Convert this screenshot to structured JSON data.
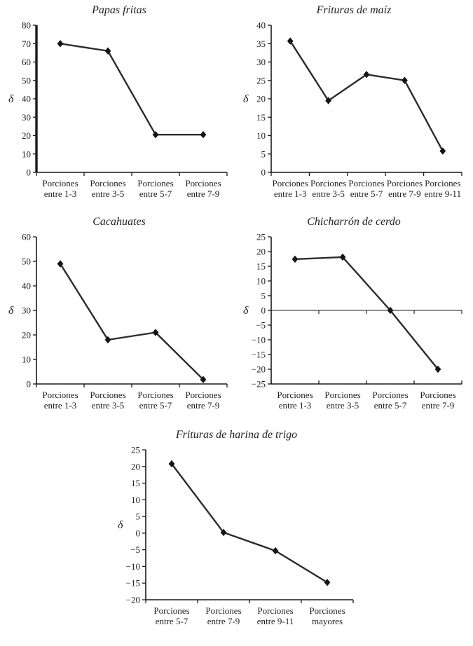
{
  "figure": {
    "description": "Five small-multiple line charts of delta values by portion ranges",
    "ylabel_symbol": "δ"
  },
  "colors": {
    "line": "#2b2b2b",
    "marker": "#151515",
    "axis": "#1a1a1a",
    "text": "#1f1f1f",
    "background": "#ffffff"
  },
  "chart_data": [
    {
      "type": "line",
      "title": "Papas fritas",
      "ylabel": "δ",
      "xlabel": "",
      "ylim": [
        0,
        80
      ],
      "ytick_step": 10,
      "categories": [
        [
          "Porciones",
          "entre 1-3"
        ],
        [
          "Porciones",
          "entre 3-5"
        ],
        [
          "Porciones",
          "entre 5-7"
        ],
        [
          "Porciones",
          "entre 7-9"
        ]
      ],
      "values": [
        70,
        66,
        20.5,
        20.5
      ],
      "grid": false,
      "legend": false,
      "zero_line": false,
      "thick_y_axis": true,
      "x_tick_dir": "down"
    },
    {
      "type": "line",
      "title": "Frituras de maíz",
      "ylabel": "δ",
      "xlabel": "",
      "ylim": [
        0,
        40
      ],
      "ytick_step": 5,
      "categories": [
        [
          "Porciones",
          "entre 1-3"
        ],
        [
          "Porciones",
          "entre 3-5"
        ],
        [
          "Porciones",
          "entre 5-7"
        ],
        [
          "Porciones",
          "entre 7-9"
        ],
        [
          "Porciones",
          "entre 9-11"
        ]
      ],
      "values": [
        35.7,
        19.5,
        26.6,
        25,
        5.8
      ],
      "grid": false,
      "legend": false,
      "zero_line": false,
      "thick_y_axis": false,
      "x_tick_dir": "down"
    },
    {
      "type": "line",
      "title": "Cacahuates",
      "ylabel": "δ",
      "xlabel": "",
      "ylim": [
        0,
        60
      ],
      "ytick_step": 10,
      "categories": [
        [
          "Porciones",
          "entre 1-3"
        ],
        [
          "Porciones",
          "entre 3-5"
        ],
        [
          "Porciones",
          "entre 5-7"
        ],
        [
          "Porciones",
          "entre 7-9"
        ]
      ],
      "values": [
        49,
        18,
        21,
        1.8
      ],
      "grid": false,
      "legend": false,
      "zero_line": false,
      "thick_y_axis": false,
      "x_tick_dir": "down"
    },
    {
      "type": "line",
      "title": "Chicharrón de cerdo",
      "ylabel": "δ",
      "xlabel": "",
      "ylim": [
        -25,
        25
      ],
      "ytick_step": 5,
      "categories": [
        [
          "Porciones",
          "entre 1-3"
        ],
        [
          "Porciones",
          "entre 3-5"
        ],
        [
          "Porciones",
          "entre 5-7"
        ],
        [
          "Porciones",
          "entre 7-9"
        ]
      ],
      "values": [
        17.4,
        18.1,
        0,
        -20
      ],
      "grid": false,
      "legend": false,
      "zero_line": true,
      "thick_y_axis": false,
      "x_tick_dir": "up"
    },
    {
      "type": "line",
      "title": "Frituras de harina de trigo",
      "ylabel": "δ",
      "xlabel": "",
      "ylim": [
        -20,
        25
      ],
      "ytick_step": 5,
      "categories": [
        [
          "Porciones",
          "entre 5-7"
        ],
        [
          "Porciones",
          "entre 7-9"
        ],
        [
          "Porciones",
          "entre 9-11"
        ],
        [
          "Porciones",
          "mayores"
        ]
      ],
      "values": [
        20.8,
        0.2,
        -5.3,
        -14.8
      ],
      "grid": false,
      "legend": false,
      "zero_line": false,
      "thick_y_axis": false,
      "x_tick_dir": "down"
    }
  ]
}
